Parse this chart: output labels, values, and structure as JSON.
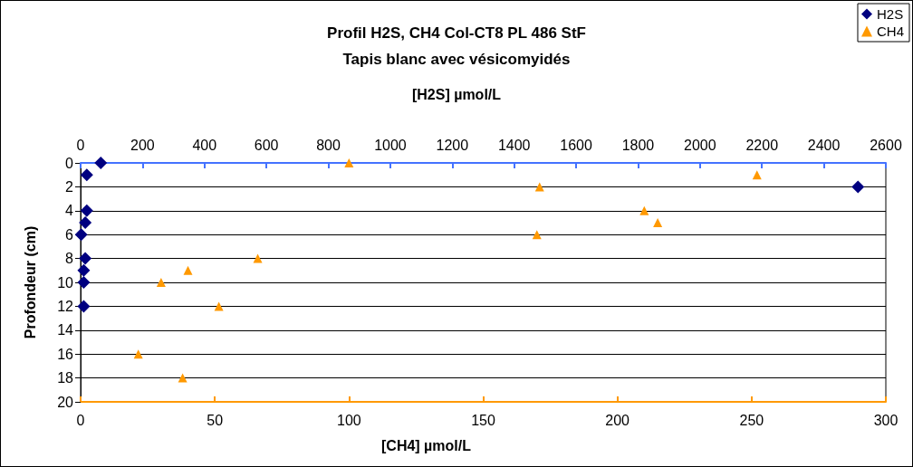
{
  "chart_data": {
    "type": "scatter",
    "title": "Profil H2S, CH4 Col-CT8 PL 486 StF",
    "subtitle": "Tapis blanc avec vésicomyidés",
    "xlabel": "[CH4] µmol/L",
    "x2label": "[H2S] µmol/L",
    "ylabel": "Profondeur (cm)",
    "series": [
      {
        "name": "H2S",
        "color": "#000080",
        "marker": "diamond",
        "axis": "x2",
        "x": [
          65,
          20,
          2510,
          20,
          15,
          2,
          15,
          10,
          10,
          10
        ],
        "values": [
          0,
          1,
          2,
          4,
          5,
          6,
          8,
          9,
          10,
          12
        ]
      },
      {
        "name": "CH4",
        "color": "#ff9900",
        "marker": "triangle",
        "x": [
          100,
          252,
          171,
          210,
          215,
          170,
          66,
          40,
          30,
          51.5,
          21.5,
          38
        ],
        "values": [
          0,
          1,
          2,
          4,
          5,
          6,
          8,
          9,
          10,
          12,
          16,
          18
        ]
      }
    ],
    "xlim": [
      0,
      300
    ],
    "xticks": [
      0,
      50,
      100,
      150,
      200,
      250,
      300
    ],
    "x2lim": [
      0,
      2600
    ],
    "x2ticks": [
      0,
      200,
      400,
      600,
      800,
      1000,
      1200,
      1400,
      1600,
      1800,
      2000,
      2200,
      2400,
      2600
    ],
    "ylim": [
      20,
      0
    ],
    "yticks": [
      0,
      2,
      4,
      6,
      8,
      10,
      12,
      14,
      16,
      18,
      20
    ],
    "grid": "y",
    "legend": "top right"
  }
}
